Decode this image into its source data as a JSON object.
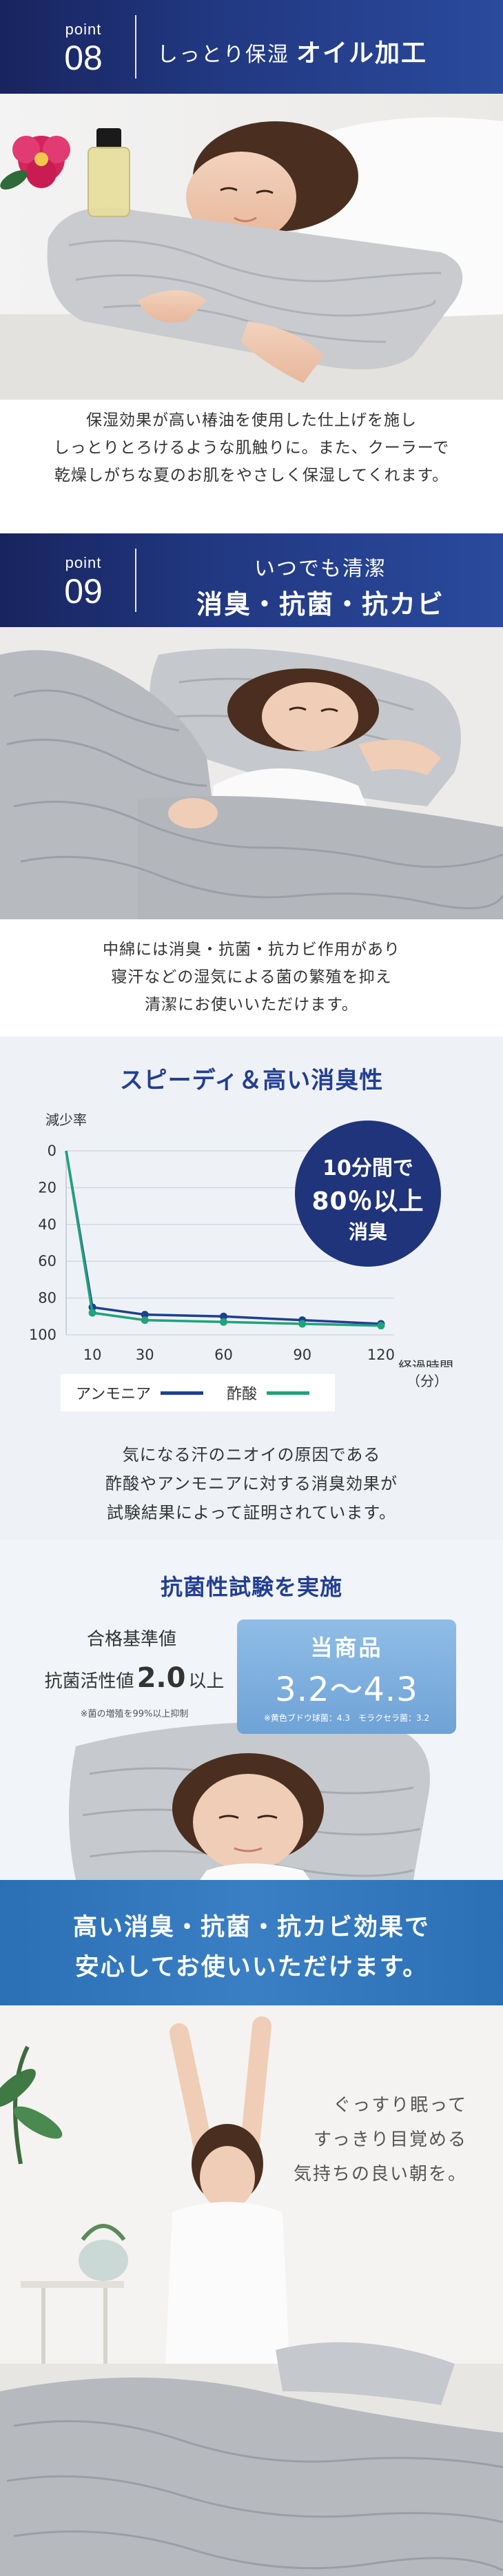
{
  "point08": {
    "label": "point",
    "number": "08",
    "title_prefix": "しっとり保湿",
    "title_emphasis": "オイル加工"
  },
  "caption08": [
    "保湿効果が高い椿油を使用した仕上げを施し",
    "しっとりとろけるような肌触りに。また、クーラーで",
    "乾燥しがちな夏のお肌をやさしく保湿してくれます。"
  ],
  "point09": {
    "label": "point",
    "number": "09",
    "title_line1": "いつでも清潔",
    "title_line2": "消臭・抗菌・抗カビ"
  },
  "caption09": [
    "中綿には消臭・抗菌・抗カビ作用があり",
    "寝汗などの湿気による菌の繁殖を抑え",
    "清潔にお使いいただけます。"
  ],
  "chart_section": {
    "title": "スピーディ＆高い消臭性",
    "badge": {
      "line1": "10分間で",
      "line2": "80％以上",
      "line3": "消臭"
    },
    "legend": {
      "ammonia": "アンモニア",
      "acetic": "酢酸"
    },
    "note": [
      "気になる汗のニオイの原因である",
      "酢酸やアンモニアに対する消臭効果が",
      "試験結果によって証明されています。"
    ]
  },
  "chart_data": {
    "type": "line",
    "title": "スピーディ＆高い消臭性",
    "ylabel": "減少率",
    "xlabel": "経過時間（分）",
    "xlabel_line1": "経過時間",
    "xlabel_line2": "（分）",
    "ylim": [
      0,
      100
    ],
    "y_inverted": true,
    "yticks": [
      0,
      20,
      40,
      60,
      80,
      100
    ],
    "xticks": [
      10,
      30,
      60,
      90,
      120
    ],
    "x": [
      0,
      10,
      30,
      60,
      90,
      120
    ],
    "series": [
      {
        "name": "アンモニア",
        "color": "#1f3f91",
        "values": [
          0,
          85,
          89,
          90,
          92,
          94
        ]
      },
      {
        "name": "酢酸",
        "color": "#1fa37c",
        "values": [
          0,
          88,
          92,
          93,
          94,
          95
        ]
      }
    ],
    "grid": true,
    "legend_position": "bottom-left"
  },
  "anti_section": {
    "title": "抗菌性試験を実施",
    "std_label": "合格基準値",
    "std_prefix": "抗菌活性値",
    "std_number": "2.0",
    "std_suffix": "以上",
    "std_note": "※菌の増殖を99%以上抑制",
    "product_label": "当商品",
    "product_range": "3.2〜4.3",
    "product_note": "※黄色ブドウ球菌：4.3　モラクセラ菌：3.2"
  },
  "banner": {
    "line1": "高い消臭・抗菌・抗カビ効果で",
    "line2": "安心してお使いいただけます。"
  },
  "final": {
    "lines": [
      "ぐっすり眠って",
      "すっきり目覚める",
      "気持ちの良い朝を。"
    ]
  },
  "colors": {
    "header_navy": "#1c2d70",
    "accent_blue": "#233f92",
    "banner_blue": "#2f73b8",
    "ammonia": "#1f3f91",
    "acetic": "#1fa37c"
  }
}
